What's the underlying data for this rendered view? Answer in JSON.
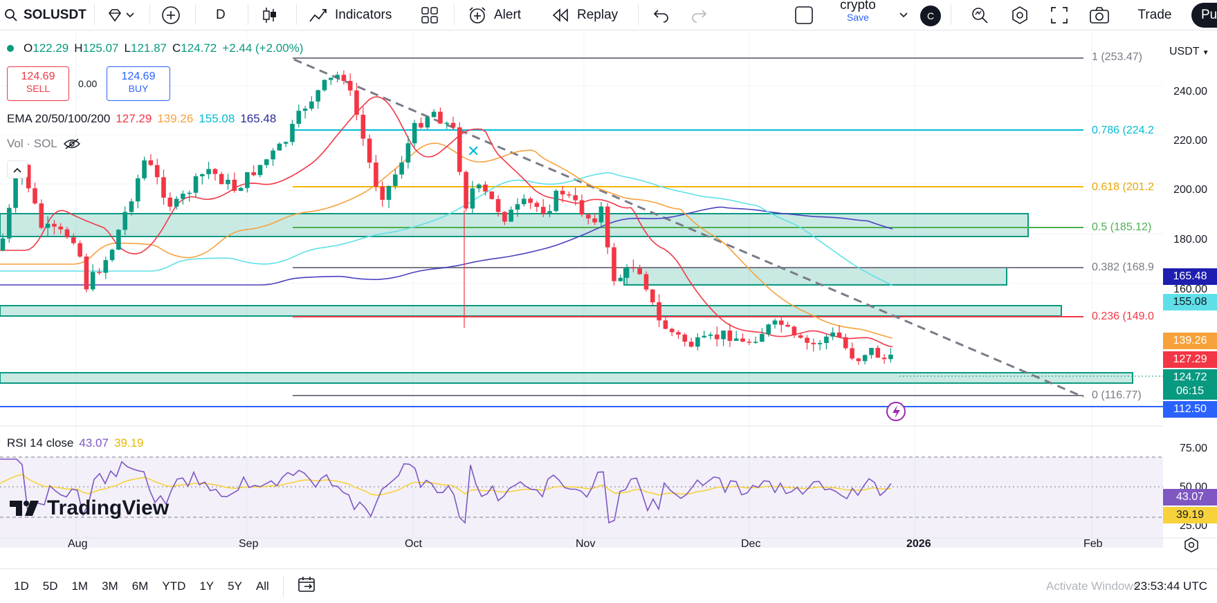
{
  "topbar": {
    "symbol": "SOLUSDT",
    "interval": "D",
    "indicators": "Indicators",
    "alert": "Alert",
    "replay": "Replay",
    "layout_name": "crypto",
    "save": "Save",
    "avatar": "C",
    "trade": "Trade",
    "publish": "Pu"
  },
  "legend": {
    "o_label": "O",
    "o": "122.29",
    "h_label": "H",
    "h": "125.07",
    "l_label": "L",
    "l": "121.87",
    "c_label": "C",
    "c": "124.72",
    "change": "+2.44 (+2.00%)",
    "sell_price": "124.69",
    "sell_label": "SELL",
    "spread": "0.00",
    "buy_price": "124.69",
    "buy_label": "BUY",
    "ema_label": "EMA 20/50/100/200",
    "ema20": "127.29",
    "ema50": "139.26",
    "ema100": "155.08",
    "ema200": "165.48",
    "vol_label": "Vol · SOL",
    "rsi_label": "RSI 14 close",
    "rsi": "43.07",
    "rsi_ma": "39.19"
  },
  "currency": "USDT",
  "price_axis": [
    "240.00",
    "220.00",
    "200.00",
    "180.00",
    "160.00"
  ],
  "rsi_axis": [
    "75.00",
    "50.00",
    "25.00"
  ],
  "time_axis": [
    "Aug",
    "Sep",
    "Oct",
    "Nov",
    "Dec",
    "2026",
    "Feb"
  ],
  "fib": [
    {
      "label": "1 (253.47)",
      "color": "#787b86"
    },
    {
      "label": "0.786 (224.2",
      "color": "#00bcd4"
    },
    {
      "label": "0.618 (201.2",
      "color": "#f7b500"
    },
    {
      "label": "0.5 (185.12)",
      "color": "#4caf50"
    },
    {
      "label": "0.382 (168.9",
      "color": "#787b86"
    },
    {
      "label": "0.236 (149.0",
      "color": "#f23645"
    },
    {
      "label": "0 (116.77)",
      "color": "#787b86"
    }
  ],
  "price_labels": {
    "ema200": "165.48",
    "ema100": "155.08",
    "ema50": "139.26",
    "ema20": "127.29",
    "last": "124.72",
    "countdown": "06:15",
    "hline": "112.50",
    "rsi": "43.07",
    "rsi_ma": "39.19"
  },
  "colors": {
    "up": "#089981",
    "down": "#f23645",
    "ema20": "#f23645",
    "ema50": "#f7a13b",
    "ema100": "#5fe0e8",
    "ema200": "#4a3fbf",
    "zone": "#089981",
    "rsi": "#7e57c2",
    "rsi_ma": "#f7d23b",
    "hline": "#2962ff"
  },
  "brand": "TradingView",
  "ranges": [
    "1D",
    "5D",
    "1M",
    "3M",
    "6M",
    "YTD",
    "1Y",
    "5Y",
    "All"
  ],
  "utc_time": "23:53:44 UTC",
  "watermark": "Activate Windows"
}
